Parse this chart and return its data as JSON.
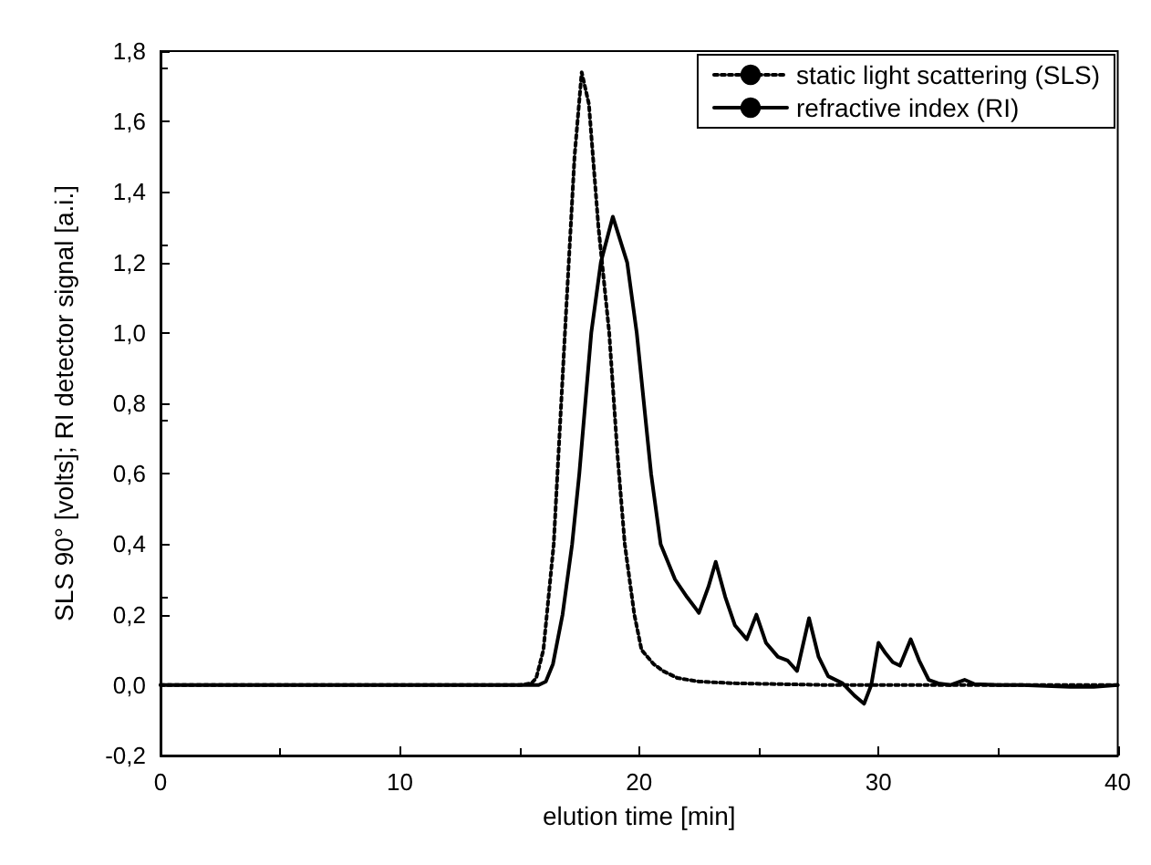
{
  "chart_data": {
    "type": "line",
    "xlabel": "elution time [min]",
    "ylabel": "SLS 90° [volts]; RI detector signal [a.i.]",
    "xlim": [
      0,
      40
    ],
    "xticks": [
      0,
      10,
      20,
      30,
      40
    ],
    "ylim": [
      -0.2,
      1.8
    ],
    "yticks": [
      {
        "value": -0.2,
        "label": "-0,2"
      },
      {
        "value": 0,
        "label": "0,0"
      },
      {
        "value": 0.2,
        "label": "0,2"
      },
      {
        "value": 0.4,
        "label": "0,4"
      },
      {
        "value": 0.6,
        "label": "0,6"
      },
      {
        "value": 0.8,
        "label": "0,8"
      },
      {
        "value": 1.0,
        "label": "1,0"
      },
      {
        "value": 1.2,
        "label": "1,2"
      },
      {
        "value": 1.4,
        "label": "1,4"
      },
      {
        "value": 1.6,
        "label": "1,6"
      },
      {
        "value": 1.8,
        "label": "1,8"
      }
    ],
    "grid": false,
    "legend": "top right",
    "marker": "none",
    "series": [
      {
        "name": "static light scattering (SLS)",
        "color": "#000000",
        "line_style": "dotted",
        "x": [
          0,
          5,
          10,
          15,
          15.5,
          15.7,
          16.0,
          16.43,
          16.9,
          17.3,
          17.6,
          17.9,
          18.3,
          18.75,
          19.1,
          19.4,
          19.8,
          20.1,
          20.6,
          21.0,
          21.6,
          22.5,
          24,
          28,
          32,
          36,
          40
        ],
        "values": [
          0,
          0,
          0,
          0,
          0.005,
          0.02,
          0.1,
          0.4,
          1.0,
          1.5,
          1.74,
          1.65,
          1.3,
          1.0,
          0.65,
          0.4,
          0.2,
          0.1,
          0.06,
          0.04,
          0.02,
          0.01,
          0.005,
          0,
          0,
          0,
          0
        ]
      },
      {
        "name": "refractive index (RI)",
        "color": "#000000",
        "line_style": "solid",
        "x": [
          0,
          5,
          10,
          15,
          15.8,
          16.1,
          16.4,
          16.8,
          17.2,
          17.5,
          18.0,
          18.4,
          18.9,
          19.5,
          19.9,
          20.5,
          20.9,
          21.5,
          22.0,
          22.5,
          22.9,
          23.2,
          23.6,
          24.0,
          24.5,
          24.9,
          25.3,
          25.8,
          26.2,
          26.6,
          27.1,
          27.5,
          27.9,
          28.5,
          29.0,
          29.4,
          29.7,
          30.0,
          30.3,
          30.6,
          30.9,
          31.35,
          31.7,
          32.1,
          32.5,
          33.0,
          33.6,
          34.0,
          35,
          36,
          38,
          39,
          40
        ],
        "values": [
          0,
          0,
          0,
          0,
          0,
          0.01,
          0.06,
          0.2,
          0.4,
          0.6,
          1.0,
          1.2,
          1.33,
          1.2,
          1.0,
          0.6,
          0.4,
          0.3,
          0.25,
          0.205,
          0.28,
          0.35,
          0.25,
          0.17,
          0.13,
          0.2,
          0.12,
          0.08,
          0.07,
          0.04,
          0.19,
          0.08,
          0.025,
          0.005,
          -0.03,
          -0.053,
          0.0,
          0.12,
          0.09,
          0.065,
          0.055,
          0.13,
          0.07,
          0.015,
          0.005,
          0,
          0.015,
          0.003,
          0,
          0,
          -0.005,
          -0.005,
          0
        ]
      }
    ]
  }
}
